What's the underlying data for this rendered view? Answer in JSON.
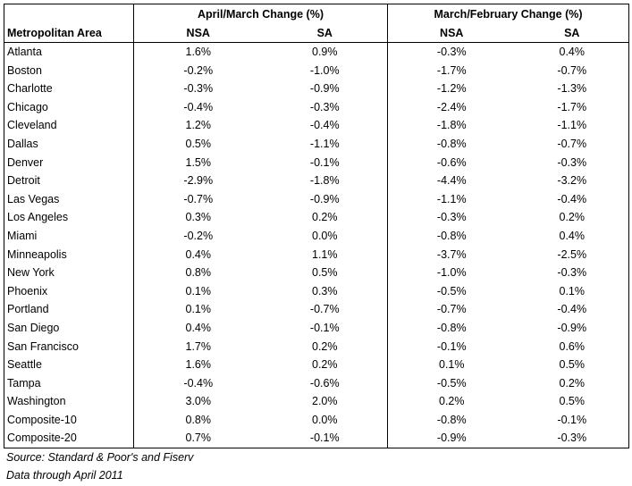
{
  "table": {
    "group_april_march": "April/March Change (%)",
    "group_march_february": "March/February Change (%)",
    "col_area": "Metropolitan Area",
    "col_nsa_1": "NSA",
    "col_sa_1": "SA",
    "col_nsa_2": "NSA",
    "col_sa_2": "SA",
    "rows": [
      {
        "area": "Atlanta",
        "am_nsa": "1.6%",
        "am_sa": "0.9%",
        "mf_nsa": "-0.3%",
        "mf_sa": "0.4%"
      },
      {
        "area": "Boston",
        "am_nsa": "-0.2%",
        "am_sa": "-1.0%",
        "mf_nsa": "-1.7%",
        "mf_sa": "-0.7%"
      },
      {
        "area": "Charlotte",
        "am_nsa": "-0.3%",
        "am_sa": "-0.9%",
        "mf_nsa": "-1.2%",
        "mf_sa": "-1.3%"
      },
      {
        "area": "Chicago",
        "am_nsa": "-0.4%",
        "am_sa": "-0.3%",
        "mf_nsa": "-2.4%",
        "mf_sa": "-1.7%"
      },
      {
        "area": "Cleveland",
        "am_nsa": "1.2%",
        "am_sa": "-0.4%",
        "mf_nsa": "-1.8%",
        "mf_sa": "-1.1%"
      },
      {
        "area": "Dallas",
        "am_nsa": "0.5%",
        "am_sa": "-1.1%",
        "mf_nsa": "-0.8%",
        "mf_sa": "-0.7%"
      },
      {
        "area": "Denver",
        "am_nsa": "1.5%",
        "am_sa": "-0.1%",
        "mf_nsa": "-0.6%",
        "mf_sa": "-0.3%"
      },
      {
        "area": "Detroit",
        "am_nsa": "-2.9%",
        "am_sa": "-1.8%",
        "mf_nsa": "-4.4%",
        "mf_sa": "-3.2%"
      },
      {
        "area": "Las Vegas",
        "am_nsa": "-0.7%",
        "am_sa": "-0.9%",
        "mf_nsa": "-1.1%",
        "mf_sa": "-0.4%"
      },
      {
        "area": "Los Angeles",
        "am_nsa": "0.3%",
        "am_sa": "0.2%",
        "mf_nsa": "-0.3%",
        "mf_sa": "0.2%"
      },
      {
        "area": "Miami",
        "am_nsa": "-0.2%",
        "am_sa": "0.0%",
        "mf_nsa": "-0.8%",
        "mf_sa": "0.4%"
      },
      {
        "area": "Minneapolis",
        "am_nsa": "0.4%",
        "am_sa": "1.1%",
        "mf_nsa": "-3.7%",
        "mf_sa": "-2.5%"
      },
      {
        "area": "New York",
        "am_nsa": "0.8%",
        "am_sa": "0.5%",
        "mf_nsa": "-1.0%",
        "mf_sa": "-0.3%"
      },
      {
        "area": "Phoenix",
        "am_nsa": "0.1%",
        "am_sa": "0.3%",
        "mf_nsa": "-0.5%",
        "mf_sa": "0.1%"
      },
      {
        "area": "Portland",
        "am_nsa": "0.1%",
        "am_sa": "-0.7%",
        "mf_nsa": "-0.7%",
        "mf_sa": "-0.4%"
      },
      {
        "area": "San Diego",
        "am_nsa": "0.4%",
        "am_sa": "-0.1%",
        "mf_nsa": "-0.8%",
        "mf_sa": "-0.9%"
      },
      {
        "area": "San Francisco",
        "am_nsa": "1.7%",
        "am_sa": "0.2%",
        "mf_nsa": "-0.1%",
        "mf_sa": "0.6%"
      },
      {
        "area": "Seattle",
        "am_nsa": "1.6%",
        "am_sa": "0.2%",
        "mf_nsa": "0.1%",
        "mf_sa": "0.5%"
      },
      {
        "area": "Tampa",
        "am_nsa": "-0.4%",
        "am_sa": "-0.6%",
        "mf_nsa": "-0.5%",
        "mf_sa": "0.2%"
      },
      {
        "area": "Washington",
        "am_nsa": "3.0%",
        "am_sa": "2.0%",
        "mf_nsa": "0.2%",
        "mf_sa": "0.5%"
      },
      {
        "area": "Composite-10",
        "am_nsa": "0.8%",
        "am_sa": "0.0%",
        "mf_nsa": "-0.8%",
        "mf_sa": "-0.1%"
      },
      {
        "area": "Composite-20",
        "am_nsa": "0.7%",
        "am_sa": "-0.1%",
        "mf_nsa": "-0.9%",
        "mf_sa": "-0.3%"
      }
    ]
  },
  "footer": {
    "source": "Source: Standard & Poor's and Fiserv",
    "data_range": "Data through April 2011"
  }
}
